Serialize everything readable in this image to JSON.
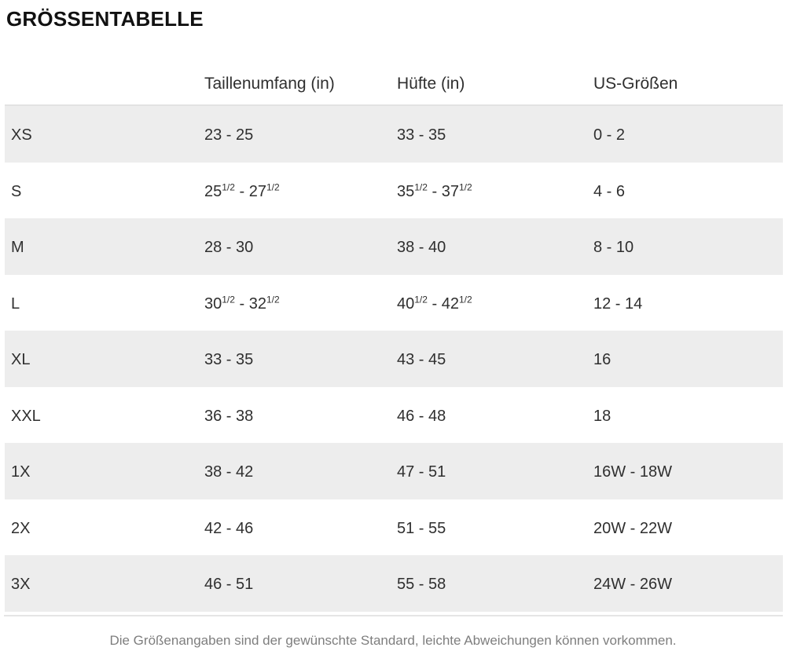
{
  "page": {
    "title": "GRÖSSENTABELLE",
    "footnote": "Die Größenangaben sind der gewünschte Standard, leichte Abweichungen können vorkommen."
  },
  "table": {
    "columns": [
      "",
      "Taillenumfang (in)",
      "Hüfte (in)",
      "US-Größen"
    ],
    "rows": [
      {
        "size": "XS",
        "waist": "23 - 25",
        "hip": "33 - 35",
        "us": "0 - 2"
      },
      {
        "size": "S",
        "waist": "25{1/2} - 27{1/2}",
        "hip": "35{1/2} - 37{1/2}",
        "us": "4 - 6"
      },
      {
        "size": "M",
        "waist": "28 - 30",
        "hip": "38 - 40",
        "us": "8 - 10"
      },
      {
        "size": "L",
        "waist": "30{1/2} - 32{1/2}",
        "hip": "40{1/2} - 42{1/2}",
        "us": "12 - 14"
      },
      {
        "size": "XL",
        "waist": "33 - 35",
        "hip": "43 - 45",
        "us": "16"
      },
      {
        "size": "XXL",
        "waist": "36 - 38",
        "hip": "46 - 48",
        "us": "18"
      },
      {
        "size": "1X",
        "waist": "38 - 42",
        "hip": "47 - 51",
        "us": "16W - 18W"
      },
      {
        "size": "2X",
        "waist": "42 - 46",
        "hip": "51 - 55",
        "us": "20W - 22W"
      },
      {
        "size": "3X",
        "waist": "46 - 51",
        "hip": "55 - 58",
        "us": "24W - 26W"
      }
    ]
  },
  "colors": {
    "title_text": "#111111",
    "text_primary": "#2f2f2f",
    "row_stripe": "#ededed",
    "header_border": "#e2e2e2",
    "divider": "#e5e5e5",
    "footnote_text": "#7e7e7e"
  }
}
